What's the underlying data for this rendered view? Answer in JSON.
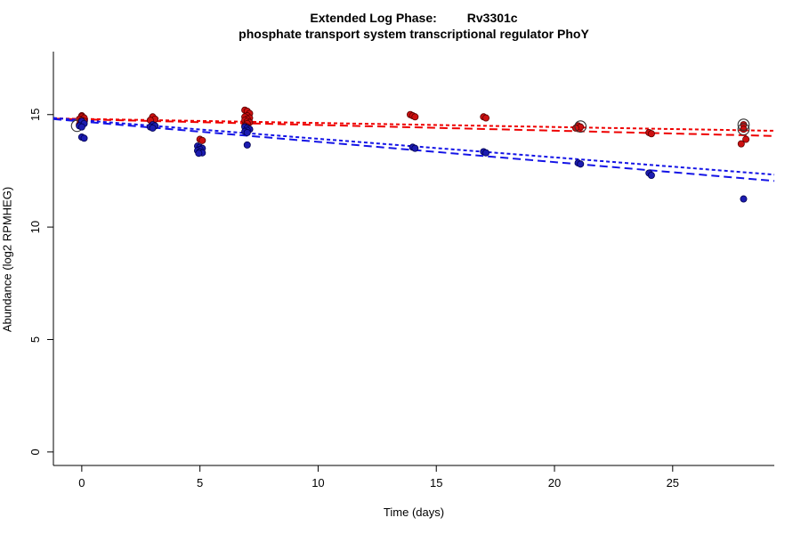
{
  "title": {
    "line1_left": "Extended Log Phase:",
    "line1_right": "Rv3301c",
    "line2": "phosphate transport system transcriptional regulator PhoY"
  },
  "axes": {
    "x_label": "Time  (days)",
    "y_label": "Abundance  (log2 RPMHEG)",
    "x_ticks": [
      0,
      5,
      10,
      15,
      20,
      25
    ],
    "y_ticks": [
      0,
      5,
      10,
      15
    ],
    "x_range": [
      -1.2,
      29.3
    ],
    "y_range": [
      -0.6,
      17.8
    ]
  },
  "colors": {
    "background": "#ffffff",
    "axis": "#000000",
    "red_point_fill": "#cc1111",
    "red_point_stroke": "#5a0000",
    "blue_point_fill": "#1c1cb0",
    "blue_point_stroke": "#000050",
    "red_line": "#ee0000",
    "blue_line": "#1414e6",
    "outline_marker": "#333333"
  },
  "chart_data": {
    "type": "scatter",
    "title": "Extended Log Phase: Rv3301c — phosphate transport system transcriptional regulator PhoY",
    "xlabel": "Time (days)",
    "ylabel": "Abundance (log2 RPMHEG)",
    "xlim": [
      -1.2,
      29.3
    ],
    "ylim": [
      -0.6,
      17.8
    ],
    "grid": false,
    "legend": "none",
    "series": [
      {
        "name": "red-condition",
        "point_color_key": "red_point_fill",
        "stroke_color_key": "red_point_stroke",
        "line_color_key": "red_line",
        "points": [
          [
            0,
            14.95
          ],
          [
            0,
            14.9
          ],
          [
            0.1,
            14.85
          ],
          [
            -0.1,
            14.8
          ],
          [
            0,
            14.75
          ],
          [
            0.1,
            14.7
          ],
          [
            0,
            14.6
          ],
          [
            -0.1,
            14.55
          ],
          [
            0,
            14.5
          ],
          [
            3,
            14.9
          ],
          [
            3.1,
            14.8
          ],
          [
            2.9,
            14.75
          ],
          [
            5,
            13.9
          ],
          [
            5.1,
            13.85
          ],
          [
            6.9,
            15.2
          ],
          [
            7,
            15.15
          ],
          [
            7.1,
            15.05
          ],
          [
            7,
            14.95
          ],
          [
            6.9,
            14.9
          ],
          [
            7.1,
            14.85
          ],
          [
            7,
            14.8
          ],
          [
            6.9,
            14.75
          ],
          [
            7,
            14.7
          ],
          [
            7.1,
            14.65
          ],
          [
            7,
            14.6
          ],
          [
            6.9,
            14.5
          ],
          [
            7,
            14.45
          ],
          [
            7.1,
            14.35
          ],
          [
            13.9,
            15.0
          ],
          [
            14,
            14.95
          ],
          [
            14.1,
            14.9
          ],
          [
            17,
            14.9
          ],
          [
            17.1,
            14.85
          ],
          [
            21,
            14.5
          ],
          [
            21.1,
            14.45
          ],
          [
            20.9,
            14.4
          ],
          [
            24,
            14.2
          ],
          [
            24.1,
            14.15
          ],
          [
            28,
            14.55
          ],
          [
            28,
            14.35
          ],
          [
            28.1,
            13.9
          ],
          [
            27.9,
            13.7
          ]
        ],
        "outlined_points": [
          [
            -0.2,
            14.5
          ],
          [
            21.1,
            14.47
          ],
          [
            28,
            14.55
          ],
          [
            28,
            14.35
          ]
        ],
        "trend_lines": [
          {
            "x1": -1.2,
            "y1": 14.83,
            "x2": 29.3,
            "y2": 14.28,
            "dash": "4 3"
          },
          {
            "x1": -1.2,
            "y1": 14.82,
            "x2": 29.3,
            "y2": 14.05,
            "dash": "9 5"
          }
        ]
      },
      {
        "name": "blue-condition",
        "point_color_key": "blue_point_fill",
        "stroke_color_key": "blue_point_stroke",
        "line_color_key": "blue_line",
        "points": [
          [
            0,
            14.7
          ],
          [
            0.1,
            14.6
          ],
          [
            -0.1,
            14.5
          ],
          [
            0,
            14.45
          ],
          [
            0,
            14.0
          ],
          [
            0.1,
            13.95
          ],
          [
            3,
            14.55
          ],
          [
            3.1,
            14.5
          ],
          [
            2.9,
            14.45
          ],
          [
            3,
            14.4
          ],
          [
            4.9,
            13.6
          ],
          [
            5,
            13.55
          ],
          [
            5.1,
            13.5
          ],
          [
            5,
            13.45
          ],
          [
            4.9,
            13.4
          ],
          [
            5,
            13.35
          ],
          [
            5.1,
            13.3
          ],
          [
            4.95,
            13.28
          ],
          [
            6.9,
            14.45
          ],
          [
            7,
            14.4
          ],
          [
            7.1,
            14.35
          ],
          [
            7,
            14.3
          ],
          [
            6.9,
            14.25
          ],
          [
            7,
            14.2
          ],
          [
            7,
            13.65
          ],
          [
            14,
            13.55
          ],
          [
            14.1,
            13.5
          ],
          [
            17,
            13.35
          ],
          [
            17.1,
            13.3
          ],
          [
            21,
            12.85
          ],
          [
            21.1,
            12.8
          ],
          [
            24,
            12.4
          ],
          [
            24.1,
            12.3
          ],
          [
            28,
            11.25
          ]
        ],
        "outlined_points": [],
        "trend_lines": [
          {
            "x1": -1.2,
            "y1": 14.85,
            "x2": 29.3,
            "y2": 12.33,
            "dash": "4 3"
          },
          {
            "x1": -1.2,
            "y1": 14.8,
            "x2": 29.3,
            "y2": 12.05,
            "dash": "9 5"
          }
        ]
      }
    ]
  }
}
